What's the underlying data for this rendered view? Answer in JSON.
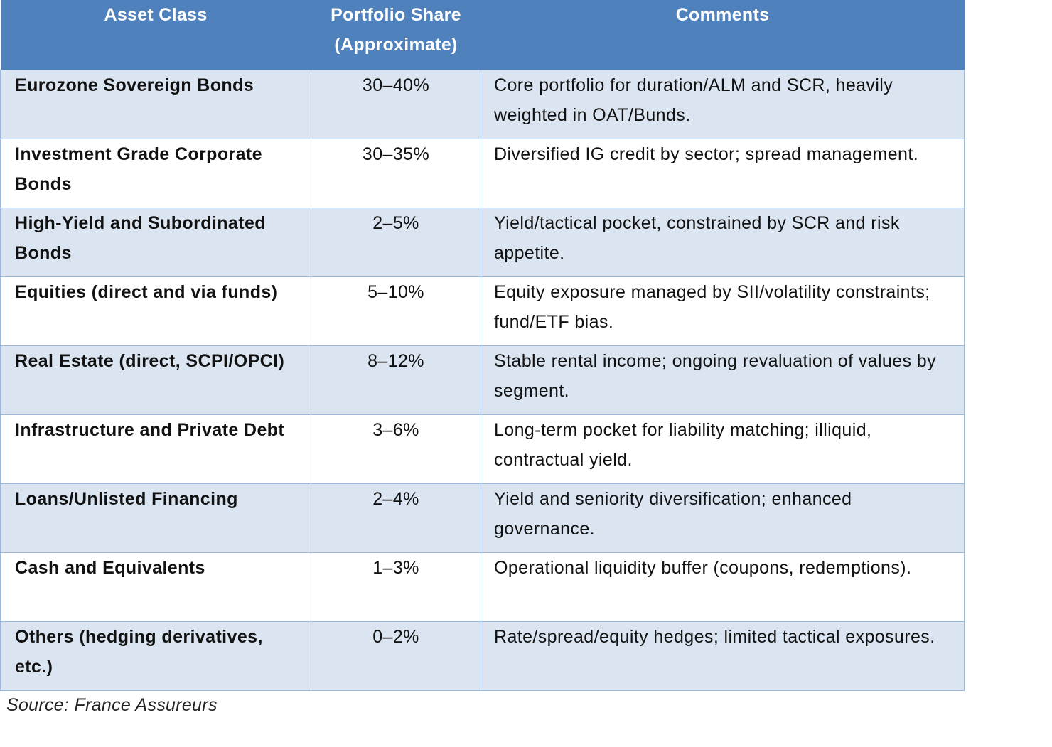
{
  "table": {
    "headers": [
      "Asset Class",
      "Portfolio Share\n(Approximate)",
      "Comments"
    ],
    "rows": [
      [
        "Eurozone Sovereign Bonds",
        "30–40%",
        "Core portfolio for duration/ALM and SCR, heavily weighted in OAT/Bunds."
      ],
      [
        "Investment Grade Corporate Bonds",
        "30–35%",
        "Diversified IG credit by sector; spread management."
      ],
      [
        "High-Yield and Subordinated Bonds",
        "2–5%",
        "Yield/tactical pocket, constrained by SCR and risk appetite."
      ],
      [
        "Equities (direct and via funds)",
        "5–10%",
        "Equity exposure managed by SII/volatility constraints; fund/ETF bias."
      ],
      [
        "Real Estate (direct, SCPI/OPCI)",
        "8–12%",
        "Stable rental income; ongoing revaluation of values by segment."
      ],
      [
        "Infrastructure and Private Debt",
        "3–6%",
        "Long-term pocket for liability matching; illiquid, contractual yield."
      ],
      [
        "Loans/Unlisted Financing",
        "2–4%",
        "Yield and seniority diversification; enhanced governance."
      ],
      [
        "Cash and Equivalents",
        "1–3%",
        "Operational liquidity buffer (coupons, redemptions)."
      ],
      [
        "Others (hedging derivatives, etc.)",
        "0–2%",
        "Rate/spread/equity hedges; limited tactical exposures."
      ]
    ]
  },
  "source": "Source: France Assureurs",
  "colors": {
    "header": "#4f81bd",
    "row_alt": "#dbe5f1",
    "border": "#9bb7da"
  }
}
